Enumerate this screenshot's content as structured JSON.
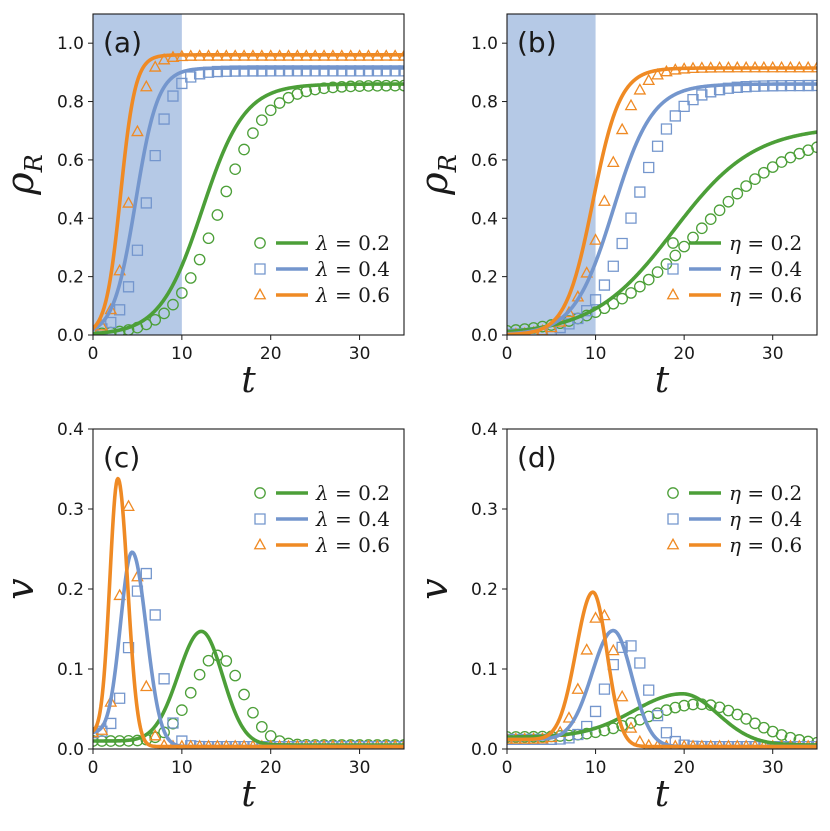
{
  "colors": {
    "green": "#4c9f38",
    "blue": "#7496cd",
    "orange": "#ef8a24",
    "shade": "#b5c9e6"
  },
  "chart_data": [
    {
      "id": "a",
      "type": "line",
      "panel_label": "(a)",
      "xlabel": "t",
      "ylabel": "ρ_R",
      "ylabel_main": "ρ",
      "ylabel_sub": "R",
      "xlim": [
        0,
        35
      ],
      "ylim": [
        0,
        1.1
      ],
      "xticks": [
        "0",
        "10",
        "20",
        "30"
      ],
      "xtick_values": [
        0,
        10,
        20,
        30
      ],
      "yticks": [
        "0.0",
        "0.2",
        "0.4",
        "0.6",
        "0.8",
        "1.0"
      ],
      "ytick_values": [
        0,
        0.2,
        0.4,
        0.6,
        0.8,
        1.0
      ],
      "shaded_region": [
        0,
        10
      ],
      "legend": {
        "location": "lower-right",
        "param": "λ",
        "entries": [
          {
            "value": "0.2",
            "color": "green",
            "marker": "circle"
          },
          {
            "value": "0.4",
            "color": "blue",
            "marker": "square"
          },
          {
            "value": "0.6",
            "color": "orange",
            "marker": "triangle"
          }
        ]
      },
      "series": [
        {
          "name": "λ = 0.2",
          "color": "green",
          "marker": "circle",
          "line": {
            "kind": "sigmoid",
            "y0": 0.0,
            "y1": 0.86,
            "x0": 12.3,
            "k": 0.42
          },
          "points": {
            "kind": "sigmoid",
            "y0": 0.0,
            "y1": 0.855,
            "x0": 14.2,
            "k": 0.38,
            "dx": 1,
            "from": 0,
            "to": 35
          }
        },
        {
          "name": "λ = 0.4",
          "color": "blue",
          "marker": "square",
          "line": {
            "kind": "sigmoid",
            "y0": 0.0,
            "y1": 0.915,
            "x0": 4.8,
            "k": 0.8
          },
          "points": {
            "kind": "sigmoid",
            "y0": 0.0,
            "y1": 0.905,
            "x0": 6.0,
            "k": 0.75,
            "dx": 1,
            "from": 0,
            "to": 35
          }
        },
        {
          "name": "λ = 0.6",
          "color": "orange",
          "marker": "triangle",
          "line": {
            "kind": "sigmoid",
            "y0": 0.0,
            "y1": 0.96,
            "x0": 3.1,
            "k": 1.2
          },
          "points": {
            "kind": "sigmoid",
            "y0": 0.0,
            "y1": 0.955,
            "x0": 4.1,
            "k": 1.1,
            "dx": 1,
            "from": 0,
            "to": 35
          }
        }
      ]
    },
    {
      "id": "b",
      "type": "line",
      "panel_label": "(b)",
      "xlabel": "t",
      "ylabel": "ρ_R",
      "ylabel_main": "ρ",
      "ylabel_sub": "R",
      "xlim": [
        0,
        35
      ],
      "ylim": [
        0,
        1.1
      ],
      "xticks": [
        "0",
        "10",
        "20",
        "30"
      ],
      "xtick_values": [
        0,
        10,
        20,
        30
      ],
      "yticks": [
        "0.0",
        "0.2",
        "0.4",
        "0.6",
        "0.8",
        "1.0"
      ],
      "ytick_values": [
        0,
        0.2,
        0.4,
        0.6,
        0.8,
        1.0
      ],
      "shaded_region": [
        0,
        10
      ],
      "legend": {
        "location": "lower-right",
        "param": "η",
        "entries": [
          {
            "value": "0.2",
            "color": "green",
            "marker": "circle"
          },
          {
            "value": "0.4",
            "color": "blue",
            "marker": "square"
          },
          {
            "value": "0.6",
            "color": "orange",
            "marker": "triangle"
          }
        ]
      },
      "series": [
        {
          "name": "η = 0.2",
          "color": "green",
          "marker": "circle",
          "line": {
            "kind": "sigmoid",
            "y0": 0.0,
            "y1": 0.715,
            "x0": 18.8,
            "k": 0.22
          },
          "points": {
            "kind": "sigmoid",
            "y0": 0.0,
            "y1": 0.7,
            "x0": 21.5,
            "k": 0.18,
            "dx": 1,
            "from": 0,
            "to": 35
          }
        },
        {
          "name": "η = 0.4",
          "color": "blue",
          "marker": "square",
          "line": {
            "kind": "sigmoid",
            "y0": 0.0,
            "y1": 0.86,
            "x0": 12.0,
            "k": 0.45
          },
          "points": {
            "kind": "sigmoid",
            "y0": 0.0,
            "y1": 0.855,
            "x0": 14.3,
            "k": 0.42,
            "dx": 1,
            "from": 0,
            "to": 35
          }
        },
        {
          "name": "η = 0.6",
          "color": "orange",
          "marker": "triangle",
          "line": {
            "kind": "sigmoid",
            "y0": 0.0,
            "y1": 0.915,
            "x0": 9.7,
            "k": 0.65
          },
          "points": {
            "kind": "sigmoid",
            "y0": 0.0,
            "y1": 0.915,
            "x0": 11.0,
            "k": 0.6,
            "dx": 1,
            "from": 0,
            "to": 35
          }
        }
      ]
    },
    {
      "id": "c",
      "type": "line",
      "panel_label": "(c)",
      "xlabel": "t",
      "ylabel": "v",
      "ylabel_main": "v",
      "ylabel_sub": "",
      "xlim": [
        0,
        35
      ],
      "ylim": [
        0,
        0.4
      ],
      "xticks": [
        "0",
        "10",
        "20",
        "30"
      ],
      "xtick_values": [
        0,
        10,
        20,
        30
      ],
      "yticks": [
        "0.0",
        "0.1",
        "0.2",
        "0.3",
        "0.4"
      ],
      "ytick_values": [
        0,
        0.1,
        0.2,
        0.3,
        0.4
      ],
      "shaded_region": null,
      "legend": {
        "location": "upper-right",
        "param": "λ",
        "entries": [
          {
            "value": "0.2",
            "color": "green",
            "marker": "circle"
          },
          {
            "value": "0.4",
            "color": "blue",
            "marker": "square"
          },
          {
            "value": "0.6",
            "color": "orange",
            "marker": "triangle"
          }
        ]
      },
      "series": [
        {
          "name": "λ = 0.2",
          "color": "green",
          "marker": "circle",
          "line": {
            "kind": "peak",
            "base": 0.005,
            "start": 0.01,
            "amp": 0.142,
            "center": 12.2,
            "wl": 2.6,
            "wr": 2.4
          },
          "points": {
            "kind": "peak",
            "base": 0.005,
            "start": 0.01,
            "amp": 0.112,
            "center": 14.0,
            "wl": 2.8,
            "wr": 2.8,
            "dx": 1,
            "from": 0,
            "to": 35
          }
        },
        {
          "name": "λ = 0.4",
          "color": "blue",
          "marker": "square",
          "line": {
            "kind": "peak",
            "base": 0.003,
            "start": 0.02,
            "amp": 0.243,
            "center": 4.4,
            "wl": 1.3,
            "wr": 1.6
          },
          "points": {
            "kind": "peak",
            "base": 0.003,
            "start": 0.02,
            "amp": 0.218,
            "center": 5.8,
            "wl": 1.6,
            "wr": 1.6,
            "dx": 1,
            "from": 0,
            "to": 35
          }
        },
        {
          "name": "λ = 0.6",
          "color": "orange",
          "marker": "triangle",
          "line": {
            "kind": "peak",
            "base": 0.003,
            "start": 0.02,
            "amp": 0.335,
            "center": 2.8,
            "wl": 0.9,
            "wr": 1.1
          },
          "points": {
            "kind": "peak",
            "base": 0.003,
            "start": 0.02,
            "amp": 0.3,
            "center": 4.0,
            "wl": 1.0,
            "wr": 1.2,
            "dx": 1,
            "from": 0,
            "to": 35
          }
        }
      ]
    },
    {
      "id": "d",
      "type": "line",
      "panel_label": "(d)",
      "xlabel": "t",
      "ylabel": "v",
      "ylabel_main": "v",
      "ylabel_sub": "",
      "xlim": [
        0,
        35
      ],
      "ylim": [
        0,
        0.4
      ],
      "xticks": [
        "0",
        "10",
        "20",
        "30"
      ],
      "xtick_values": [
        0,
        10,
        20,
        30
      ],
      "yticks": [
        "0.0",
        "0.1",
        "0.2",
        "0.3",
        "0.4"
      ],
      "ytick_values": [
        0,
        0.1,
        0.2,
        0.3,
        0.4
      ],
      "shaded_region": null,
      "legend": {
        "location": "upper-right",
        "param": "η",
        "entries": [
          {
            "value": "0.2",
            "color": "green",
            "marker": "circle"
          },
          {
            "value": "0.4",
            "color": "blue",
            "marker": "square"
          },
          {
            "value": "0.6",
            "color": "orange",
            "marker": "triangle"
          }
        ]
      },
      "series": [
        {
          "name": "η = 0.2",
          "color": "green",
          "marker": "circle",
          "line": {
            "kind": "peak",
            "base": 0.005,
            "start": 0.015,
            "amp": 0.064,
            "center": 19.8,
            "wl": 5.5,
            "wr": 4.0
          },
          "points": {
            "kind": "peak",
            "base": 0.005,
            "start": 0.015,
            "amp": 0.051,
            "center": 21.8,
            "wl": 6.0,
            "wr": 5.5,
            "dx": 1,
            "from": 0,
            "to": 35
          }
        },
        {
          "name": "η = 0.4",
          "color": "blue",
          "marker": "square",
          "line": {
            "kind": "peak",
            "base": 0.003,
            "start": 0.012,
            "amp": 0.145,
            "center": 12.0,
            "wl": 2.4,
            "wr": 2.1
          },
          "points": {
            "kind": "peak",
            "base": 0.003,
            "start": 0.012,
            "amp": 0.128,
            "center": 13.6,
            "wl": 2.3,
            "wr": 2.2,
            "dx": 1,
            "from": 0,
            "to": 35
          }
        },
        {
          "name": "η = 0.6",
          "color": "orange",
          "marker": "triangle",
          "line": {
            "kind": "peak",
            "base": 0.003,
            "start": 0.012,
            "amp": 0.193,
            "center": 9.7,
            "wl": 1.9,
            "wr": 1.6
          },
          "points": {
            "kind": "peak",
            "base": 0.003,
            "start": 0.012,
            "amp": 0.168,
            "center": 10.6,
            "wl": 1.9,
            "wr": 1.7,
            "dx": 1,
            "from": 0,
            "to": 35
          }
        }
      ]
    }
  ]
}
